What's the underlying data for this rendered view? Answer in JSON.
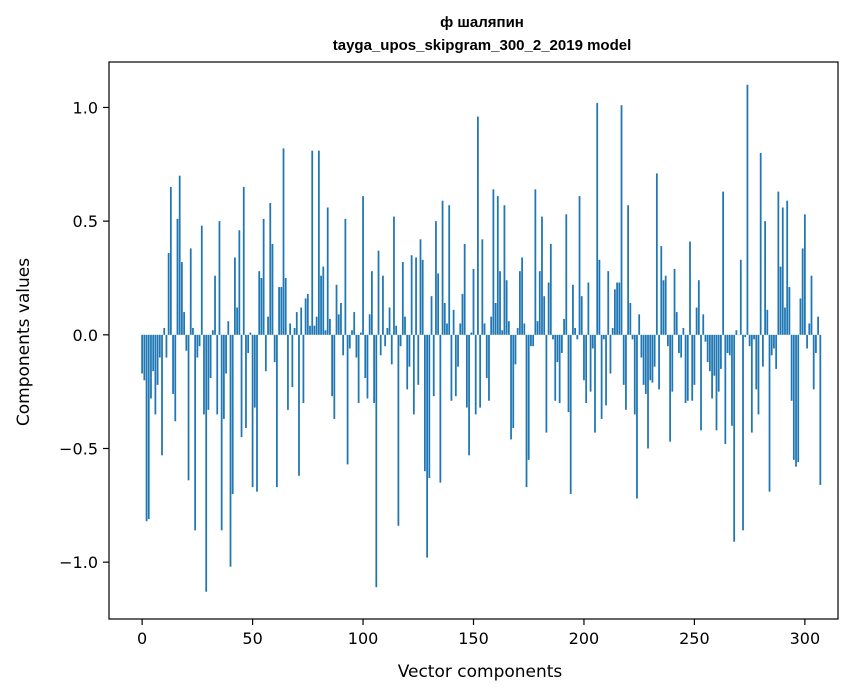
{
  "chart_data": {
    "type": "bar",
    "title_line1": "ф шаляпин",
    "title_line2": "tayga_upos_skipgram_300_2_2019 model",
    "xlabel": "Vector components",
    "ylabel": "Components values",
    "xlim": [
      -15,
      315
    ],
    "ylim": [
      -1.25,
      1.2
    ],
    "xticks": [
      0,
      50,
      100,
      150,
      200,
      250,
      300
    ],
    "xtick_labels": [
      "0",
      "50",
      "100",
      "150",
      "200",
      "250",
      "300"
    ],
    "yticks": [
      -1.0,
      -0.5,
      0.0,
      0.5,
      1.0
    ],
    "ytick_labels": [
      "−1.0",
      "−0.5",
      "0.0",
      "0.5",
      "1.0"
    ],
    "bar_color": "#1f77b4",
    "values": [
      -0.17,
      -0.2,
      -0.82,
      -0.81,
      -0.28,
      -0.16,
      -0.35,
      -0.22,
      -0.1,
      -0.53,
      0.03,
      -0.1,
      0.36,
      0.65,
      -0.26,
      -0.38,
      0.51,
      0.7,
      0.32,
      0.1,
      -0.07,
      -0.64,
      0.38,
      0.03,
      -0.86,
      -0.1,
      -0.05,
      0.48,
      -0.35,
      -1.13,
      -0.33,
      -0.19,
      0.02,
      0.26,
      -0.35,
      0.5,
      -0.86,
      -0.37,
      -0.17,
      0.06,
      -1.02,
      -0.7,
      0.34,
      0.12,
      0.46,
      -0.45,
      0.65,
      -0.41,
      -0.08,
      0.01,
      -0.67,
      -0.32,
      -0.69,
      0.28,
      0.25,
      0.51,
      -0.16,
      0.08,
      0.58,
      0.4,
      -0.12,
      -0.67,
      0.21,
      0.21,
      0.82,
      0.25,
      -0.33,
      0.05,
      -0.23,
      0.03,
      0.1,
      -0.62,
      0.12,
      -0.3,
      0.16,
      0.18,
      0.04,
      0.81,
      0.04,
      0.08,
      0.81,
      0.26,
      0.3,
      0.02,
      0.56,
      0.07,
      -0.27,
      -0.37,
      0.22,
      0.09,
      0.14,
      -0.09,
      0.51,
      -0.57,
      -0.06,
      0.02,
      0.1,
      -0.1,
      -0.3,
      0.01,
      0.61,
      -0.19,
      -0.28,
      0.09,
      0.28,
      -0.3,
      -1.11,
      0.37,
      -0.09,
      0.26,
      -0.05,
      0.03,
      0.12,
      -0.13,
      0.52,
      0.04,
      -0.84,
      -0.05,
      0.32,
      0.08,
      -0.24,
      -0.14,
      0.35,
      -0.35,
      0.34,
      -0.22,
      0.42,
      0.33,
      -0.6,
      -0.98,
      -0.63,
      0.17,
      -0.27,
      0.5,
      0.27,
      -0.65,
      0.59,
      0.14,
      0.05,
      0.57,
      -0.29,
      0.11,
      -0.27,
      -0.14,
      0.05,
      0.18,
      0.4,
      -0.32,
      -0.53,
      0.01,
      0.29,
      -0.35,
      0.96,
      -0.32,
      0.42,
      0.05,
      -0.19,
      -0.29,
      0.08,
      0.64,
      0.14,
      0.61,
      0.28,
      0.02,
      0.57,
      0.24,
      0.06,
      -0.46,
      -0.41,
      -0.13,
      0.03,
      0.28,
      0.34,
      0.05,
      -0.67,
      -0.55,
      -0.05,
      -0.05,
      0.64,
      0.06,
      0.28,
      0.52,
      0.17,
      -0.43,
      0.23,
      0.4,
      -0.02,
      -0.29,
      -0.12,
      -0.3,
      -0.08,
      0.07,
      0.53,
      -0.34,
      -0.7,
      0.22,
      0.03,
      -0.02,
      0.61,
      0.17,
      -0.2,
      -0.3,
      0.23,
      -0.25,
      -0.06,
      -0.43,
      1.02,
      0.33,
      -0.37,
      -0.02,
      -0.31,
      0.28,
      -0.17,
      0.03,
      0.2,
      0.23,
      0.23,
      1.01,
      -0.22,
      -0.33,
      0.57,
      0.14,
      -0.02,
      -0.35,
      -0.72,
      0.09,
      -0.1,
      -0.22,
      -0.26,
      -0.5,
      -0.2,
      -0.21,
      -0.14,
      0.71,
      -0.24,
      0.39,
      0.24,
      0.26,
      -0.05,
      -0.47,
      -0.25,
      0.29,
      0.1,
      -0.08,
      -0.1,
      0.03,
      -0.3,
      -0.29,
      0.41,
      -0.29,
      -0.22,
      0.12,
      0.24,
      -0.42,
      0.09,
      -0.03,
      -0.12,
      -0.16,
      -0.28,
      -0.18,
      -0.42,
      -0.25,
      -0.15,
      0.63,
      -0.48,
      -0.08,
      -0.09,
      -0.4,
      -0.91,
      0.02,
      0.0,
      0.33,
      -0.86,
      -0.01,
      1.1,
      -0.05,
      -0.43,
      -0.02,
      -0.24,
      -0.35,
      0.8,
      -0.14,
      0.5,
      0.11,
      -0.69,
      -0.09,
      -0.06,
      -0.15,
      0.63,
      0.3,
      0.56,
      0.12,
      0.59,
      0.21,
      -0.29,
      -0.55,
      -0.58,
      -0.56,
      0.16,
      0.38,
      0.53,
      -0.06,
      0.05,
      0.26,
      -0.24,
      -0.08,
      0.08,
      -0.66
    ]
  }
}
